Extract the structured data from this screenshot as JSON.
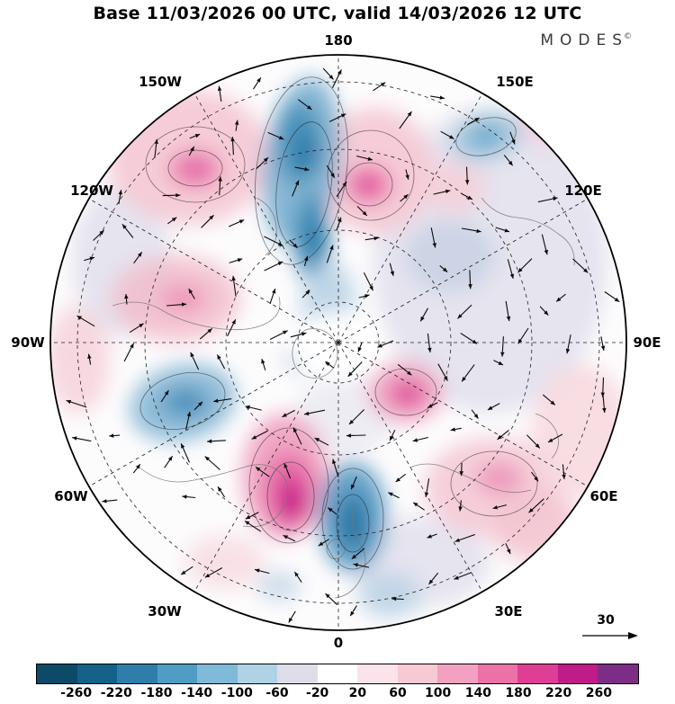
{
  "header": {
    "title": "Base 11/03/2026 00 UTC, valid 14/03/2026 12 UTC",
    "brand": "MODES",
    "brand_mark": "©"
  },
  "map": {
    "ring_labels": [
      "180",
      "150W",
      "150E",
      "120W",
      "120E",
      "90W",
      "90E",
      "60W",
      "60E",
      "30W",
      "30E",
      "0"
    ]
  },
  "reference_vector": {
    "label": "30"
  },
  "colorbar": {
    "ticks": [
      "-260",
      "-220",
      "-180",
      "-140",
      "-100",
      "-60",
      "-20",
      "20",
      "60",
      "100",
      "140",
      "180",
      "220",
      "260"
    ],
    "colors": [
      "#0d4a68",
      "#14618a",
      "#2e7dab",
      "#4f9cc4",
      "#7fbad8",
      "#afd2e5",
      "#dedde9",
      "#ffffff",
      "#fae3e9",
      "#f6c9d5",
      "#f2a2c0",
      "#eb71a7",
      "#de3f95",
      "#c01b88",
      "#7e2d86"
    ]
  },
  "chart_data": {
    "type": "heatmap",
    "subtype": "north_polar_stereographic_filled_contour_map_with_wind_vectors",
    "source": "MODES",
    "title": "Base 11/03/2026 00 UTC, valid 14/03/2026 12 UTC",
    "base_time": "11/03/2026 00 UTC",
    "valid_time": "14/03/2026 12 UTC",
    "projection": "north polar stereographic, 180 at top, 0 at bottom",
    "longitude_ring_labels": [
      "180",
      "150W",
      "150E",
      "120W",
      "120E",
      "90W",
      "90E",
      "60W",
      "60E",
      "30W",
      "30E",
      "0"
    ],
    "contour_levels": [
      -260,
      -220,
      -180,
      -140,
      -100,
      -60,
      -20,
      20,
      60,
      100,
      140,
      180,
      220,
      260
    ],
    "colorbar_colors": [
      "#0d4a68",
      "#14618a",
      "#2e7dab",
      "#4f9cc4",
      "#7fbad8",
      "#afd2e5",
      "#dedde9",
      "#ffffff",
      "#fae3e9",
      "#f6c9d5",
      "#f2a2c0",
      "#eb71a7",
      "#de3f95",
      "#c01b88",
      "#7e2d86"
    ],
    "vector_reference_value": 30,
    "legend_position": "bottom horizontal colorbar",
    "grid": "dashed graticule, meridians every 30 degrees with latitude circles",
    "approx_features": [
      {
        "sign": "negative",
        "strength": "strong",
        "approx_location": "elongated band along 180 meridian from circle edge toward the pole"
      },
      {
        "sign": "positive",
        "strength": "strong",
        "approx_location": "North Atlantic near 30W-40W mid-latitudes (deep magenta core)"
      },
      {
        "sign": "negative",
        "strength": "strong",
        "approx_location": "over western Europe near 0-10E"
      },
      {
        "sign": "positive",
        "strength": "moderate",
        "approx_location": "high latitudes near 160W with magenta core"
      },
      {
        "sign": "positive",
        "strength": "moderate",
        "approx_location": "subpolar region near 170E-180 with magenta core"
      },
      {
        "sign": "negative",
        "strength": "moderate",
        "approx_location": "northern Canada near 100W"
      },
      {
        "sign": "positive",
        "strength": "moderate",
        "approx_location": "central Siberia near 90E-120E mid-latitudes"
      },
      {
        "sign": "positive",
        "strength": "moderate",
        "approx_location": "near 60E lower right sector"
      },
      {
        "sign": "neutral",
        "strength": "weak",
        "approx_location": "broad pale lavender areas over eastern hemisphere and near the pole"
      }
    ]
  }
}
